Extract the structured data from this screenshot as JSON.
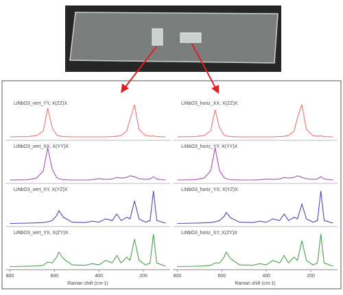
{
  "chart_data": [
    {
      "type": "line",
      "xlabel": "Raman shift (cm-1)",
      "xlim": [
        820,
        80
      ],
      "xticks": [
        800,
        600,
        400,
        200
      ],
      "x": [
        800,
        720,
        680,
        650,
        630,
        610,
        590,
        580,
        560,
        520,
        460,
        430,
        400,
        370,
        340,
        320,
        300,
        275,
        260,
        240,
        220,
        190,
        170,
        155,
        140,
        100
      ],
      "series": [
        {
          "name": "LiNbO3_vert_YY, X(ZZ)X",
          "color": "#f07070",
          "values": [
            0.02,
            0.03,
            0.06,
            0.2,
            0.9,
            0.3,
            0.08,
            0.05,
            0.03,
            0.02,
            0.02,
            0.02,
            0.02,
            0.02,
            0.03,
            0.04,
            0.06,
            0.2,
            0.55,
            1.0,
            0.25,
            0.06,
            0.04,
            0.05,
            0.03,
            0.02
          ]
        },
        {
          "name": "LiNbO3_vert_XX, X(YY)X",
          "color": "#a050b0",
          "values": [
            0.02,
            0.03,
            0.08,
            0.3,
            1.0,
            0.35,
            0.1,
            0.06,
            0.03,
            0.02,
            0.02,
            0.03,
            0.06,
            0.04,
            0.05,
            0.1,
            0.08,
            0.1,
            0.15,
            0.12,
            0.06,
            0.04,
            0.05,
            0.12,
            0.05,
            0.02
          ]
        },
        {
          "name": "LiNbO3_vert_XY, X(YZ)X",
          "color": "#4848b0",
          "values": [
            0.01,
            0.02,
            0.03,
            0.04,
            0.06,
            0.1,
            0.25,
            0.4,
            0.2,
            0.05,
            0.04,
            0.08,
            0.05,
            0.15,
            0.1,
            0.3,
            0.1,
            0.2,
            0.15,
            0.7,
            0.15,
            0.05,
            0.1,
            1.0,
            0.1,
            0.02
          ]
        },
        {
          "name": "LiNbO3_vert_YX, X(ZY)X",
          "color": "#48a048",
          "values": [
            0.01,
            0.02,
            0.03,
            0.05,
            0.15,
            0.12,
            0.3,
            0.45,
            0.25,
            0.06,
            0.05,
            0.1,
            0.06,
            0.2,
            0.12,
            0.35,
            0.12,
            0.3,
            0.2,
            0.85,
            0.2,
            0.06,
            0.12,
            1.0,
            0.12,
            0.02
          ]
        }
      ]
    },
    {
      "type": "line",
      "xlabel": "Raman shift (cm-1)",
      "xlim": [
        820,
        80
      ],
      "xticks": [
        800,
        600,
        400,
        200
      ],
      "x": [
        800,
        720,
        680,
        650,
        630,
        610,
        590,
        580,
        560,
        520,
        460,
        430,
        400,
        370,
        340,
        320,
        300,
        275,
        260,
        240,
        220,
        190,
        170,
        155,
        140,
        100
      ],
      "series": [
        {
          "name": "LiNbO3_horiz_XX, X(ZZ)X",
          "color": "#f07070",
          "values": [
            0.02,
            0.03,
            0.06,
            0.2,
            0.85,
            0.3,
            0.08,
            0.05,
            0.03,
            0.02,
            0.02,
            0.02,
            0.02,
            0.02,
            0.03,
            0.04,
            0.06,
            0.2,
            0.6,
            1.0,
            0.25,
            0.06,
            0.04,
            0.05,
            0.03,
            0.02
          ]
        },
        {
          "name": "LiNbO3_horiz_YY, X(YY)X",
          "color": "#a050b0",
          "values": [
            0.02,
            0.03,
            0.08,
            0.3,
            1.0,
            0.3,
            0.1,
            0.06,
            0.03,
            0.02,
            0.02,
            0.03,
            0.05,
            0.04,
            0.05,
            0.1,
            0.08,
            0.1,
            0.15,
            0.1,
            0.06,
            0.04,
            0.05,
            0.12,
            0.05,
            0.02
          ]
        },
        {
          "name": "LiNbO3_horiz_YX, X(YZ)X",
          "color": "#4848b0",
          "values": [
            0.01,
            0.02,
            0.03,
            0.04,
            0.06,
            0.1,
            0.22,
            0.35,
            0.18,
            0.05,
            0.04,
            0.08,
            0.05,
            0.15,
            0.1,
            0.3,
            0.1,
            0.2,
            0.15,
            0.6,
            0.15,
            0.05,
            0.1,
            1.0,
            0.1,
            0.02
          ]
        },
        {
          "name": "LiNbO3_horiz_XY, X(ZY)X",
          "color": "#48a048",
          "values": [
            0.01,
            0.02,
            0.03,
            0.05,
            0.12,
            0.12,
            0.3,
            0.45,
            0.25,
            0.06,
            0.05,
            0.1,
            0.06,
            0.2,
            0.12,
            0.35,
            0.12,
            0.3,
            0.2,
            0.8,
            0.2,
            0.06,
            0.12,
            1.0,
            0.12,
            0.02
          ]
        }
      ]
    }
  ]
}
